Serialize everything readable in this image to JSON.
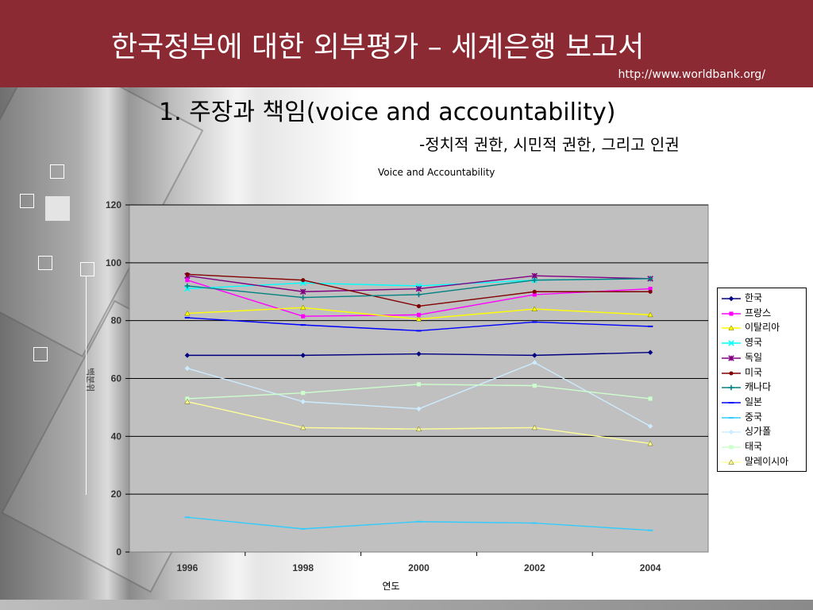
{
  "slide": {
    "title": "한국정부에 대한 외부평가 – 세계은행 보고서",
    "url": "http://www.worldbank.org/",
    "heading": "1. 주장과 책임(voice and accountability)",
    "subheading": "-정치적 권한, 시민적 권한, 그리고 인권"
  },
  "chart_data": {
    "type": "line",
    "title": "Voice and Accountability",
    "xlabel": "연도",
    "ylabel": "백분위",
    "x": [
      "1996",
      "1998",
      "2000",
      "2002",
      "2004"
    ],
    "yticks": [
      "0",
      "20",
      "40",
      "60",
      "80",
      "100",
      "120"
    ],
    "ylim": [
      0,
      120
    ],
    "grid": true,
    "legend_position": "right",
    "series": [
      {
        "name": "한국",
        "color": "#000080",
        "marker": "diamond",
        "values": [
          68,
          68,
          68.5,
          68,
          69
        ]
      },
      {
        "name": "프랑스",
        "color": "#ff00ff",
        "marker": "square",
        "values": [
          94,
          81.5,
          82,
          89,
          91
        ]
      },
      {
        "name": "이탈리아",
        "color": "#ffff00",
        "marker": "triangle",
        "values": [
          82.5,
          84.5,
          80.5,
          84,
          82
        ]
      },
      {
        "name": "영국",
        "color": "#00ffff",
        "marker": "x",
        "values": [
          91,
          93,
          92,
          94,
          94.5
        ]
      },
      {
        "name": "독일",
        "color": "#800080",
        "marker": "star",
        "values": [
          95.5,
          90,
          91,
          95.5,
          94.5
        ]
      },
      {
        "name": "미국",
        "color": "#800000",
        "marker": "circle",
        "values": [
          96,
          94,
          85,
          90,
          90
        ]
      },
      {
        "name": "캐나다",
        "color": "#008080",
        "marker": "plus",
        "values": [
          92,
          88,
          89,
          94,
          94.5
        ]
      },
      {
        "name": "일본",
        "color": "#0000ff",
        "marker": "dash",
        "values": [
          81,
          78.5,
          76.5,
          79.5,
          78
        ]
      },
      {
        "name": "중국",
        "color": "#33ccff",
        "marker": "dash",
        "values": [
          12,
          8,
          10.5,
          10,
          7.5
        ]
      },
      {
        "name": "싱가폴",
        "color": "#ccecff",
        "marker": "diamond",
        "values": [
          63.5,
          52,
          49.5,
          65.5,
          43.5
        ]
      },
      {
        "name": "태국",
        "color": "#ccffcc",
        "marker": "square",
        "values": [
          53,
          55,
          58,
          57.5,
          53
        ]
      },
      {
        "name": "말레이시아",
        "color": "#ffff99",
        "marker": "triangle",
        "values": [
          52,
          43,
          42.5,
          43,
          37.5
        ]
      }
    ]
  }
}
